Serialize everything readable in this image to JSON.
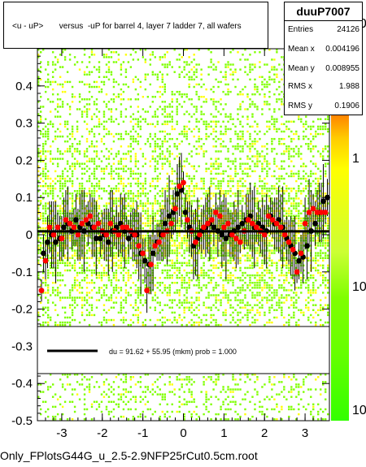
{
  "title": "<u - uP>       versus  -uP for barrel 4, layer 7 ladder 7, all wafers",
  "stats": {
    "name": "duuP7007",
    "rows": [
      {
        "label": "Entries",
        "value": "24126"
      },
      {
        "label": "Mean x",
        "value": "0.004196"
      },
      {
        "label": "Mean y",
        "value": "0.008955"
      },
      {
        "label": "RMS x",
        "value": "1.988"
      },
      {
        "label": "RMS y",
        "value": "0.1906"
      }
    ]
  },
  "legend": {
    "text": "du =   91.62 + 55.95 (mkm) prob = 1.000"
  },
  "footer": "Only_FPlotsG44G_u_2.5-2.9NFP25rCut0.5cm.root",
  "colors": {
    "fit_line": "#000000",
    "red_points": "#ff0000",
    "black_points": "#000000",
    "hist_green": "#7fff00",
    "hist_yellow": "#ffff00",
    "palette_top": "#ff8000"
  },
  "chart_data": {
    "type": "scatter",
    "xlim": [
      -3.6,
      3.6
    ],
    "ylim": [
      -0.5,
      0.5
    ],
    "x_ticks": [
      -3,
      -2,
      -1,
      0,
      1,
      2,
      3
    ],
    "y_ticks": [
      -0.5,
      -0.4,
      -0.3,
      -0.2,
      -0.1,
      0,
      0.1,
      0.2,
      0.3,
      0.4
    ],
    "y_tick_labels": [
      "-0.5",
      "-0.4",
      "-0.3",
      "-0.2",
      "-0.1",
      "0",
      "0.1",
      "0.2",
      "0.3",
      "0.4"
    ],
    "z_tick_labels": [
      "10",
      "1",
      "10"
    ],
    "fit_line": {
      "y_value": 0.009
    },
    "red_points": {
      "x": [
        -3.5,
        -3.4,
        -3.3,
        -3.2,
        -3.1,
        -3.0,
        -2.9,
        -2.8,
        -2.7,
        -2.6,
        -2.5,
        -2.4,
        -2.3,
        -2.2,
        -2.1,
        -2.0,
        -1.9,
        -1.8,
        -1.7,
        -1.6,
        -1.5,
        -1.4,
        -1.3,
        -1.2,
        -1.1,
        -1.0,
        -0.9,
        -0.8,
        -0.7,
        -0.6,
        -0.5,
        -0.4,
        -0.3,
        -0.2,
        -0.1,
        0.0,
        0.1,
        0.2,
        0.3,
        0.4,
        0.5,
        0.6,
        0.7,
        0.8,
        0.9,
        1.0,
        1.1,
        1.2,
        1.3,
        1.4,
        1.5,
        1.6,
        1.7,
        1.8,
        1.9,
        2.0,
        2.1,
        2.2,
        2.3,
        2.4,
        2.5,
        2.6,
        2.7,
        2.8,
        2.9,
        3.0,
        3.1,
        3.2,
        3.3,
        3.4,
        3.5
      ],
      "y": [
        -0.15,
        -0.07,
        0.02,
        0.0,
        0.02,
        -0.01,
        0.04,
        0.03,
        0.02,
        0.0,
        0.03,
        0.04,
        0.05,
        0.02,
        0.03,
        0.01,
        0.0,
        0.03,
        0.01,
        0.0,
        0.02,
        0.02,
        0.01,
        0.0,
        -0.03,
        -0.05,
        -0.15,
        -0.08,
        -0.03,
        -0.02,
        0.0,
        0.01,
        0.03,
        0.07,
        0.13,
        0.14,
        0.04,
        0.01,
        -0.02,
        0.0,
        0.02,
        0.03,
        0.04,
        0.06,
        0.05,
        0.02,
        0.03,
        0.0,
        -0.01,
        -0.02,
        0.01,
        0.04,
        0.03,
        0.02,
        0.01,
        0.0,
        0.05,
        0.04,
        0.03,
        0.02,
        0.0,
        -0.02,
        -0.04,
        -0.1,
        -0.05,
        0.03,
        0.06,
        0.07,
        0.06,
        0.06,
        0.06
      ]
    },
    "black_points": {
      "x": [
        -3.45,
        -3.35,
        -3.25,
        -3.15,
        -3.05,
        -2.95,
        -2.85,
        -2.75,
        -2.65,
        -2.55,
        -2.45,
        -2.35,
        -2.25,
        -2.15,
        -2.05,
        -1.95,
        -1.85,
        -1.75,
        -1.65,
        -1.55,
        -1.45,
        -1.35,
        -1.25,
        -1.15,
        -1.05,
        -0.95,
        -0.85,
        -0.75,
        -0.65,
        -0.55,
        -0.45,
        -0.35,
        -0.25,
        -0.15,
        -0.05,
        0.05,
        0.15,
        0.25,
        0.35,
        0.45,
        0.55,
        0.65,
        0.75,
        0.85,
        0.95,
        1.05,
        1.15,
        1.25,
        1.35,
        1.45,
        1.55,
        1.65,
        1.75,
        1.85,
        1.95,
        2.05,
        2.15,
        2.25,
        2.35,
        2.45,
        2.55,
        2.65,
        2.75,
        2.85,
        2.95,
        3.05,
        3.15,
        3.25,
        3.35,
        3.45,
        3.55
      ],
      "y": [
        -0.05,
        -0.02,
        0.0,
        -0.02,
        -0.01,
        0.02,
        0.03,
        0.01,
        0.04,
        0.02,
        0.01,
        0.03,
        0.02,
        -0.01,
        -0.01,
        0.0,
        -0.02,
        0.01,
        0.02,
        0.03,
        0.01,
        -0.01,
        0.0,
        0.0,
        -0.05,
        -0.07,
        -0.08,
        -0.05,
        -0.02,
        0.0,
        0.03,
        0.05,
        0.06,
        0.11,
        0.12,
        0.06,
        0.02,
        -0.03,
        -0.01,
        0.01,
        0.02,
        0.03,
        0.02,
        0.01,
        0.0,
        -0.01,
        0.0,
        0.01,
        0.02,
        0.03,
        0.04,
        0.05,
        0.02,
        0.03,
        0.02,
        0.01,
        0.05,
        0.03,
        0.04,
        0.02,
        -0.01,
        -0.03,
        -0.05,
        -0.07,
        -0.06,
        -0.03,
        0.01,
        0.03,
        0.06,
        0.09,
        0.1
      ]
    }
  }
}
